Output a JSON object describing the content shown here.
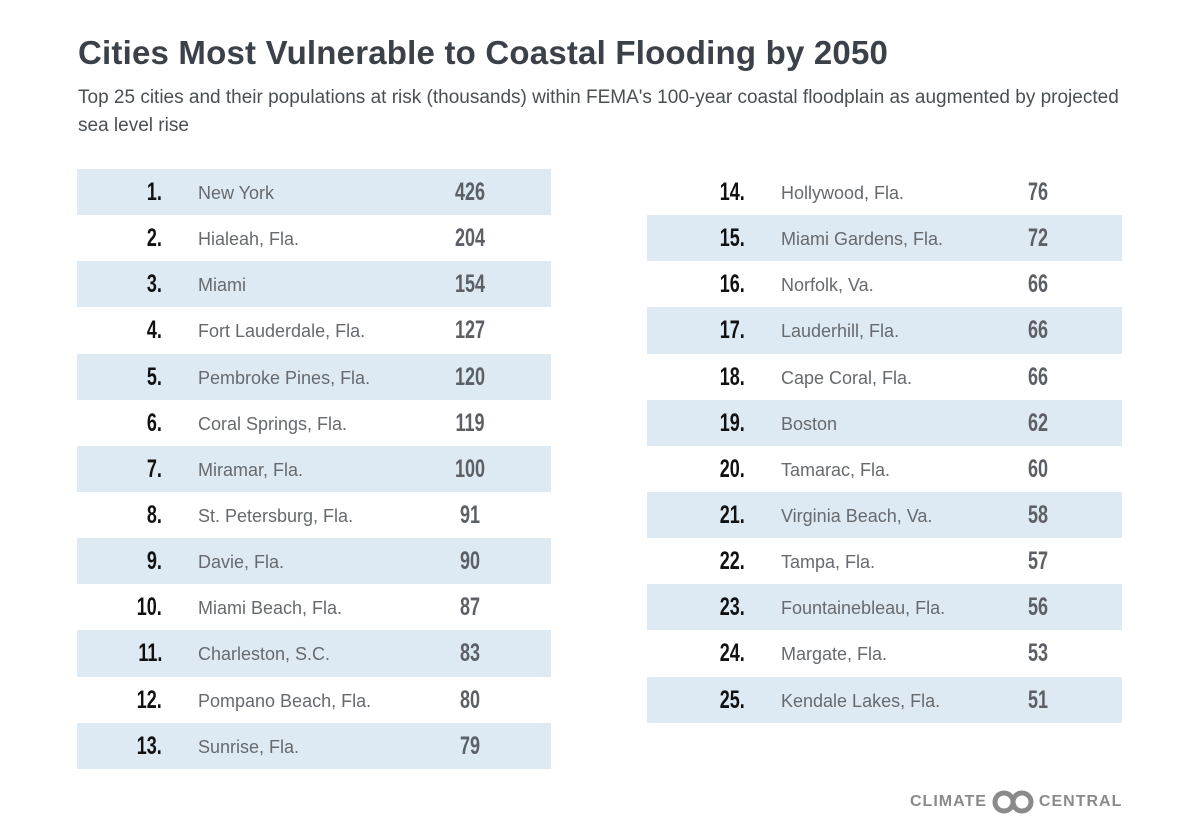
{
  "title": "Cities Most Vulnerable to Coastal Flooding by 2050",
  "subtitle": "Top 25 cities and their populations at risk (thousands) within FEMA's 100-year coastal floodplain as augmented by projected sea level rise",
  "colors": {
    "row_shade": "#deeaf3",
    "title": "#3b4148",
    "logo": "#8a8a8a"
  },
  "rows": [
    {
      "rank": "1.",
      "city": "New York",
      "value": "426"
    },
    {
      "rank": "2.",
      "city": "Hialeah, Fla.",
      "value": "204"
    },
    {
      "rank": "3.",
      "city": "Miami",
      "value": "154"
    },
    {
      "rank": "4.",
      "city": "Fort Lauderdale, Fla.",
      "value": "127"
    },
    {
      "rank": "5.",
      "city": "Pembroke Pines, Fla.",
      "value": "120"
    },
    {
      "rank": "6.",
      "city": "Coral Springs, Fla.",
      "value": "119"
    },
    {
      "rank": "7.",
      "city": "Miramar, Fla.",
      "value": "100"
    },
    {
      "rank": "8.",
      "city": "St. Petersburg, Fla.",
      "value": "91"
    },
    {
      "rank": "9.",
      "city": "Davie, Fla.",
      "value": "90"
    },
    {
      "rank": "10.",
      "city": "Miami Beach, Fla.",
      "value": "87"
    },
    {
      "rank": "11.",
      "city": "Charleston, S.C.",
      "value": "83"
    },
    {
      "rank": "12.",
      "city": "Pompano Beach, Fla.",
      "value": "80"
    },
    {
      "rank": "13.",
      "city": "Sunrise, Fla.",
      "value": "79"
    },
    {
      "rank": "14.",
      "city": "Hollywood, Fla.",
      "value": "76"
    },
    {
      "rank": "15.",
      "city": "Miami Gardens, Fla.",
      "value": "72"
    },
    {
      "rank": "16.",
      "city": "Norfolk, Va.",
      "value": "66"
    },
    {
      "rank": "17.",
      "city": "Lauderhill, Fla.",
      "value": "66"
    },
    {
      "rank": "18.",
      "city": "Cape Coral, Fla.",
      "value": "66"
    },
    {
      "rank": "19.",
      "city": "Boston",
      "value": "62"
    },
    {
      "rank": "20.",
      "city": "Tamarac, Fla.",
      "value": "60"
    },
    {
      "rank": "21.",
      "city": "Virginia Beach, Va.",
      "value": "58"
    },
    {
      "rank": "22.",
      "city": "Tampa, Fla.",
      "value": "57"
    },
    {
      "rank": "23.",
      "city": "Fountainebleau, Fla.",
      "value": "56"
    },
    {
      "rank": "24.",
      "city": "Margate, Fla.",
      "value": "53"
    },
    {
      "rank": "25.",
      "city": "Kendale Lakes, Fla.",
      "value": "51"
    }
  ],
  "logo": {
    "left": "CLIMATE",
    "right": "CENTRAL"
  }
}
